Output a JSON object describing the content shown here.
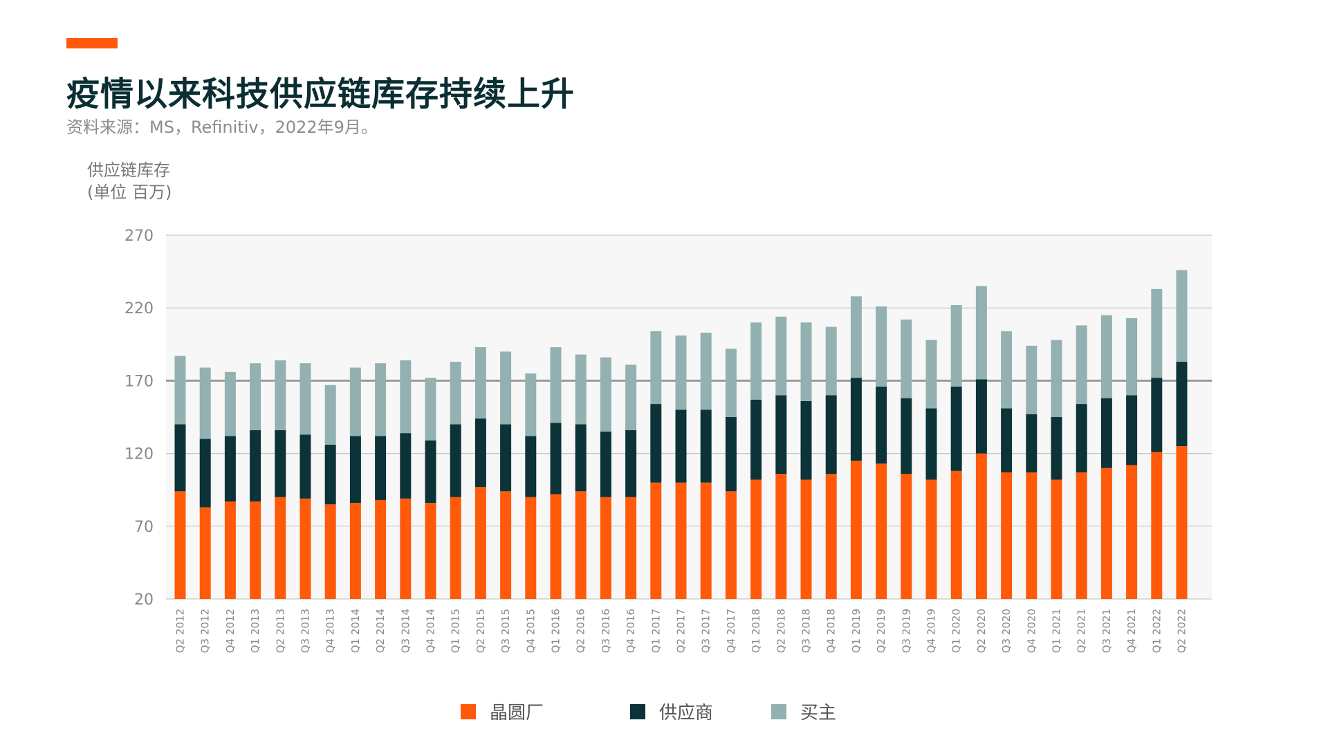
{
  "header": {
    "title": "疫情以来科技供应链库存持续上升",
    "source": "资料来源：MS，Refinitiv，2022年9月。"
  },
  "colors": {
    "accent": "#ff5a0a",
    "series": [
      "#ff5a0a",
      "#0b3338",
      "#93b1b1"
    ],
    "plot_bg": "#f7f7f7",
    "grid": "#bdbdbd",
    "threshold_line": "#9a9a9a"
  },
  "chart_data": {
    "type": "bar",
    "stacked": true,
    "ylabel": [
      "供应链库存",
      "(单位 百万)"
    ],
    "ylim": [
      20,
      270
    ],
    "yticks": [
      20,
      70,
      120,
      170,
      220,
      270
    ],
    "reference_line": 170,
    "grid": true,
    "legend_position": "bottom",
    "categories": [
      "Q2 2012",
      "Q3 2012",
      "Q4 2012",
      "Q1 2013",
      "Q2 2013",
      "Q3 2013",
      "Q4 2013",
      "Q1 2014",
      "Q2 2014",
      "Q3 2014",
      "Q4 2014",
      "Q1 2015",
      "Q2 2015",
      "Q3 2015",
      "Q4 2015",
      "Q1 2016",
      "Q2 2016",
      "Q3 2016",
      "Q4 2016",
      "Q1 2017",
      "Q2 2017",
      "Q3 2017",
      "Q4 2017",
      "Q1 2018",
      "Q2 2018",
      "Q3 2018",
      "Q4 2018",
      "Q1 2019",
      "Q2 2019",
      "Q3 2019",
      "Q4 2019",
      "Q1 2020",
      "Q2 2020",
      "Q3 2020",
      "Q4 2020",
      "Q1 2021",
      "Q2 2021",
      "Q3 2021",
      "Q4 2021",
      "Q1 2022",
      "Q2 2022"
    ],
    "series": [
      {
        "name": "晶圆厂",
        "values": [
          74,
          63,
          67,
          67,
          70,
          69,
          65,
          66,
          68,
          69,
          66,
          70,
          77,
          74,
          70,
          72,
          74,
          70,
          70,
          80,
          80,
          80,
          74,
          82,
          86,
          82,
          86,
          95,
          93,
          86,
          82,
          88,
          100,
          87,
          87,
          82,
          87,
          90,
          92,
          101,
          105
        ]
      },
      {
        "name": "供应商",
        "values": [
          46,
          47,
          45,
          49,
          46,
          44,
          41,
          46,
          44,
          45,
          43,
          50,
          47,
          46,
          42,
          49,
          46,
          45,
          46,
          54,
          50,
          50,
          51,
          55,
          54,
          54,
          54,
          57,
          53,
          52,
          49,
          58,
          51,
          44,
          40,
          43,
          47,
          48,
          48,
          51,
          58
        ]
      },
      {
        "name": "买主",
        "values": [
          47,
          49,
          44,
          46,
          48,
          49,
          41,
          47,
          50,
          50,
          43,
          43,
          49,
          50,
          43,
          52,
          48,
          51,
          45,
          50,
          51,
          53,
          47,
          53,
          54,
          54,
          47,
          56,
          55,
          54,
          47,
          56,
          64,
          53,
          47,
          53,
          54,
          57,
          53,
          61,
          63
        ]
      }
    ]
  }
}
